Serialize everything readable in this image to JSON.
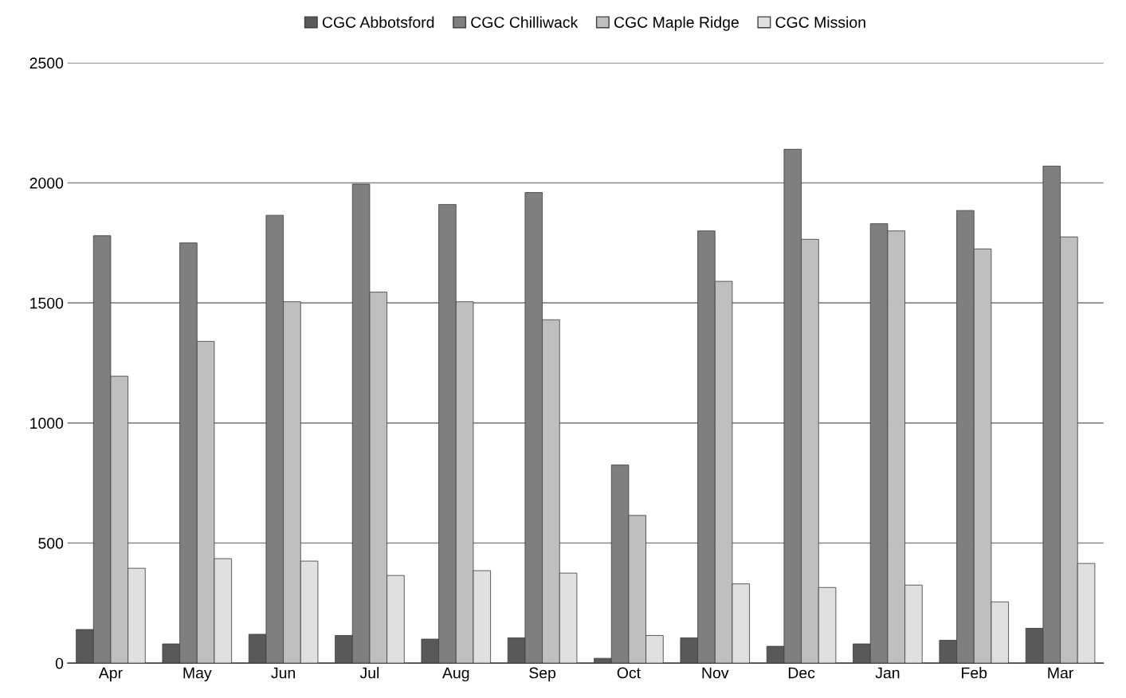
{
  "chart_data": {
    "type": "bar",
    "categories": [
      "Apr",
      "May",
      "Jun",
      "Jul",
      "Aug",
      "Sep",
      "Oct",
      "Nov",
      "Dec",
      "Jan",
      "Feb",
      "Mar"
    ],
    "series": [
      {
        "name": "CGC Abbotsford",
        "color": "#595959",
        "values": [
          140,
          80,
          120,
          115,
          100,
          105,
          20,
          105,
          70,
          80,
          95,
          145
        ]
      },
      {
        "name": "CGC Chilliwack",
        "color": "#7f7f7f",
        "values": [
          1780,
          1750,
          1865,
          1995,
          1910,
          1960,
          825,
          1800,
          2140,
          1830,
          1885,
          2070
        ]
      },
      {
        "name": "CGC Maple Ridge",
        "color": "#bfbfbf",
        "values": [
          1195,
          1340,
          1505,
          1545,
          1505,
          1430,
          615,
          1590,
          1765,
          1800,
          1725,
          1775
        ]
      },
      {
        "name": "CGC Mission",
        "color": "#e0e0e0",
        "values": [
          395,
          435,
          425,
          365,
          385,
          375,
          115,
          330,
          315,
          325,
          255,
          415
        ]
      }
    ],
    "ylim": [
      0,
      2500
    ],
    "yticks": [
      0,
      500,
      1000,
      1500,
      2000,
      2500
    ],
    "grid": "y",
    "legend": "top"
  }
}
